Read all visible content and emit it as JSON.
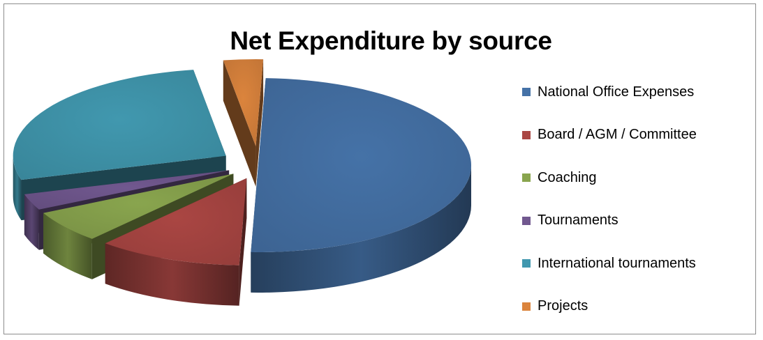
{
  "chart_data": {
    "type": "pie",
    "title": "Net Expenditure by source",
    "exploded": true,
    "three_d": true,
    "legend_position": "right",
    "categories": [
      "National Office Expenses",
      "Board / AGM / Committee",
      "Coaching",
      "Tournaments",
      "International tournaments",
      "Projects"
    ],
    "values": [
      50,
      11,
      6,
      3,
      27,
      3
    ],
    "colors": [
      "#4572a7",
      "#aa4643",
      "#89a54e",
      "#71588f",
      "#4198af",
      "#db843d"
    ]
  }
}
